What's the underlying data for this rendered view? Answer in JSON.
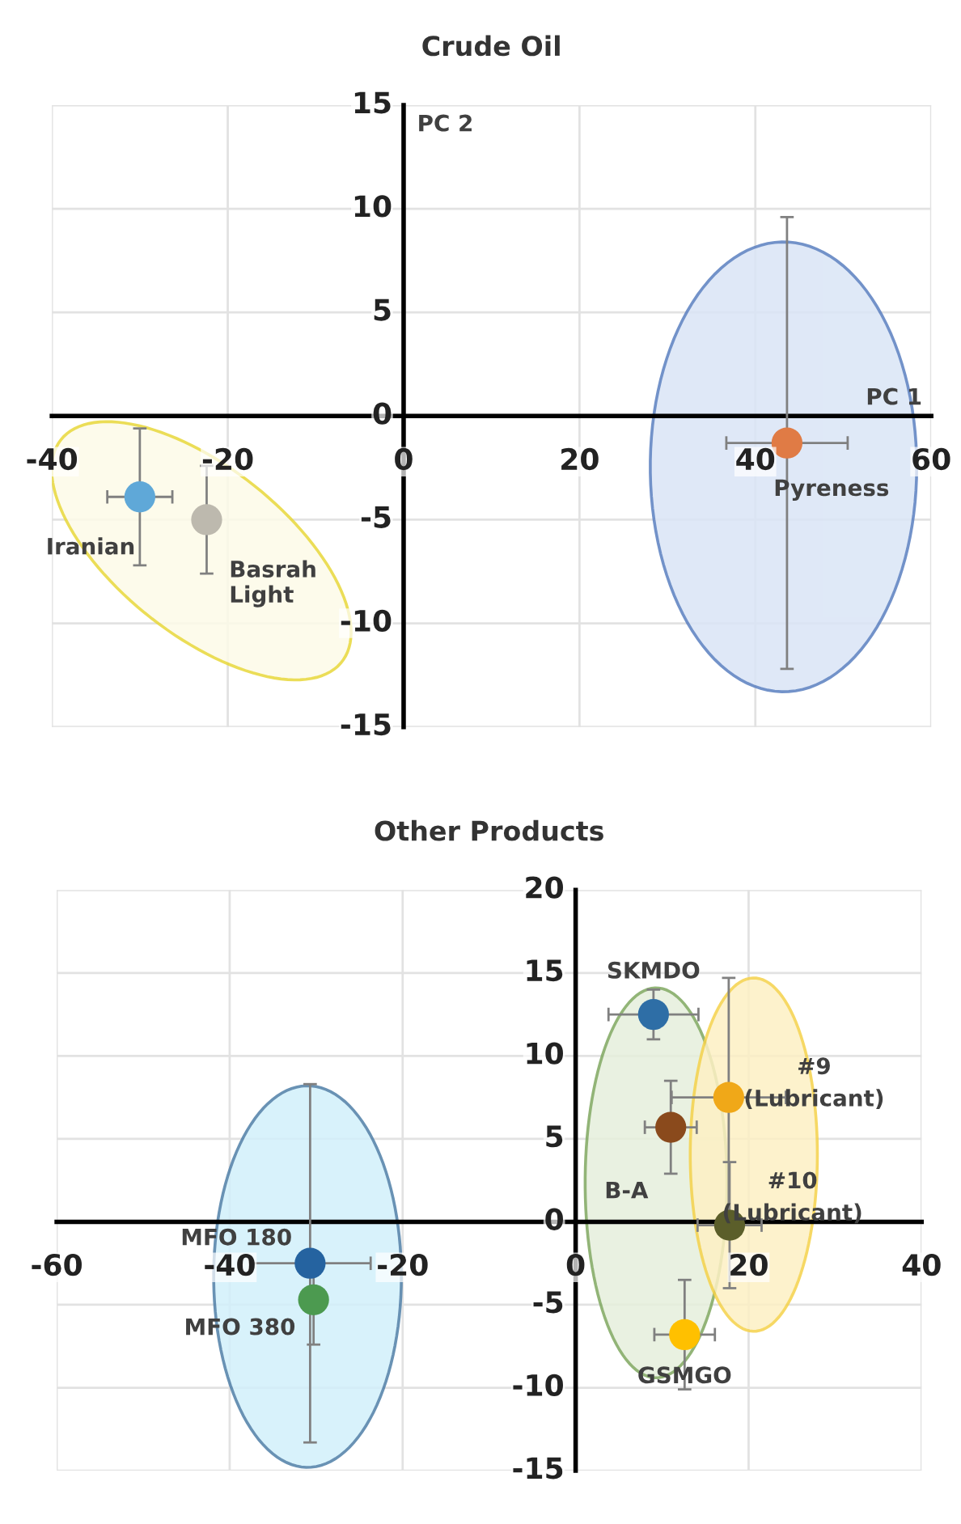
{
  "chart_data": [
    {
      "type": "scatter",
      "title": "Crude Oil",
      "xlabel": "PC 1",
      "ylabel": "PC 2",
      "xlim": [
        -40,
        60
      ],
      "ylim": [
        -15,
        15
      ],
      "xticks": [
        -40,
        -20,
        0,
        20,
        40,
        60
      ],
      "yticks": [
        -15,
        -10,
        -5,
        0,
        5,
        10,
        15
      ],
      "grid": true,
      "legend": false,
      "marker": "circle",
      "series": [
        {
          "name": "Iranian",
          "color": "#5fa8d8",
          "x": [
            -30
          ],
          "values": [
            -3.9
          ],
          "errors": [
            3.3
          ],
          "xerrors": [
            3.7
          ]
        },
        {
          "name": "Basrah Light",
          "color": "#bdb9ae",
          "x": [
            -22.4
          ],
          "values": [
            -5.0
          ],
          "errors": [
            2.6
          ],
          "xerrors": [
            null
          ]
        },
        {
          "name": "Pyreness",
          "color": "#e07b45",
          "x": [
            43.6
          ],
          "values": [
            -1.3
          ],
          "errors": [
            10.9
          ],
          "xerrors": [
            6.9
          ]
        }
      ]
    },
    {
      "type": "scatter",
      "title": "Other Products",
      "xlim": [
        -60,
        40
      ],
      "ylim": [
        -15,
        20
      ],
      "xticks": [
        -60,
        -40,
        -20,
        0,
        20,
        40
      ],
      "yticks": [
        -15,
        -10,
        -5,
        0,
        5,
        10,
        15,
        20
      ],
      "grid": true,
      "legend": false,
      "marker": "circle",
      "series": [
        {
          "name": "SKMDO",
          "color": "#2e6ea6",
          "x": [
            9
          ],
          "values": [
            12.5
          ],
          "errors": [
            1.5
          ],
          "xerrors": [
            5.2
          ]
        },
        {
          "name": "#9 (Lubricant)",
          "color": "#f0a818",
          "x": [
            17.7
          ],
          "values": [
            7.5
          ],
          "errors": [
            7.2
          ],
          "xerrors": [
            6.6
          ]
        },
        {
          "name": "B-A",
          "color": "#8a4a1c",
          "x": [
            11
          ],
          "values": [
            5.7
          ],
          "errors": [
            2.8
          ],
          "xerrors": [
            3
          ]
        },
        {
          "name": "#10 (Lubricant)",
          "color": "#5b5e2a",
          "x": [
            17.8
          ],
          "values": [
            -0.2
          ],
          "errors": [
            3.8
          ],
          "xerrors": [
            3.7
          ]
        },
        {
          "name": "GSMGO",
          "color": "#ffc000",
          "x": [
            12.6
          ],
          "values": [
            -6.8
          ],
          "errors": [
            3.3
          ],
          "xerrors": [
            3.5
          ]
        },
        {
          "name": "MFO 180",
          "color": "#2563a0",
          "x": [
            -30.7
          ],
          "values": [
            -2.5
          ],
          "errors": [
            10.8
          ],
          "xerrors": [
            7
          ]
        },
        {
          "name": "MFO 380",
          "color": "#4c9a50",
          "x": [
            -30.3
          ],
          "values": [
            -4.7
          ],
          "errors": [
            2.7
          ],
          "xerrors": [
            null
          ]
        }
      ]
    }
  ]
}
